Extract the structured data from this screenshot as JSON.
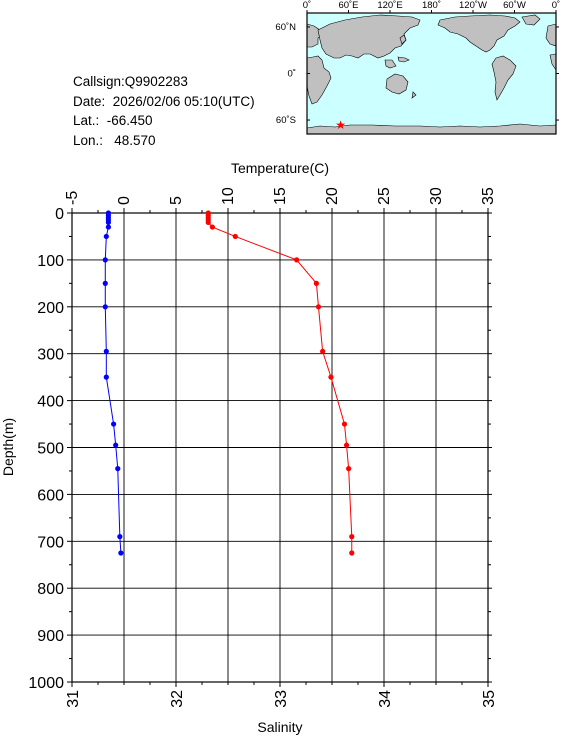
{
  "info": {
    "callsign": "Callsign:Q9902283",
    "date": "Date:  2026/02/06 05:10(UTC)",
    "lat": "Lat.:  -66.450",
    "lon": "Lon.:   48.570"
  },
  "map": {
    "top_labels": [
      "0˚",
      "60˚E",
      "120˚E",
      "180˚",
      "120˚W",
      "60˚W",
      "0˚"
    ],
    "right_labels": [
      "60˚N",
      "0˚",
      "60˚S"
    ],
    "marker": {
      "lon": 48.57,
      "lat": -66.45,
      "color": "#ff0000"
    },
    "ocean_color": "#ccffff",
    "land_color": "#c0c0c0"
  },
  "chart_data": {
    "type": "line",
    "title": "",
    "xlabel_top": "Temperature(C)",
    "xlabel_bottom": "Salinity",
    "ylabel": "Depth(m)",
    "temp_range": [
      -5,
      35
    ],
    "temp_ticks": [
      "-5",
      "0",
      "5",
      "10",
      "15",
      "20",
      "25",
      "30",
      "35"
    ],
    "sal_range": [
      31,
      35
    ],
    "sal_ticks": [
      "31",
      "32",
      "33",
      "34",
      "35"
    ],
    "depth_range": [
      0,
      1000
    ],
    "depth_ticks": [
      "0",
      "100",
      "200",
      "300",
      "400",
      "500",
      "600",
      "700",
      "800",
      "900",
      "1000"
    ],
    "grid": true,
    "series": [
      {
        "quantity": "temperature",
        "color": "#ff0000",
        "points": [
          [
            8.1,
            0
          ],
          [
            8.1,
            5
          ],
          [
            8.1,
            10
          ],
          [
            8.1,
            15
          ],
          [
            8.1,
            20
          ],
          [
            8.5,
            30
          ],
          [
            10.7,
            50
          ],
          [
            16.6,
            100
          ],
          [
            18.5,
            150
          ],
          [
            18.7,
            200
          ],
          [
            19.1,
            295
          ],
          [
            19.9,
            350
          ],
          [
            21.2,
            450
          ],
          [
            21.4,
            495
          ],
          [
            21.6,
            545
          ],
          [
            21.9,
            690
          ],
          [
            21.9,
            725
          ]
        ]
      },
      {
        "quantity": "salinity",
        "color": "#0000ff",
        "points": [
          [
            31.35,
            0
          ],
          [
            31.35,
            5
          ],
          [
            31.35,
            10
          ],
          [
            31.35,
            15
          ],
          [
            31.35,
            20
          ],
          [
            31.35,
            30
          ],
          [
            31.33,
            50
          ],
          [
            31.32,
            100
          ],
          [
            31.32,
            150
          ],
          [
            31.32,
            200
          ],
          [
            31.33,
            295
          ],
          [
            31.33,
            350
          ],
          [
            31.4,
            450
          ],
          [
            31.42,
            495
          ],
          [
            31.44,
            545
          ],
          [
            31.46,
            690
          ],
          [
            31.47,
            725
          ]
        ]
      }
    ]
  }
}
